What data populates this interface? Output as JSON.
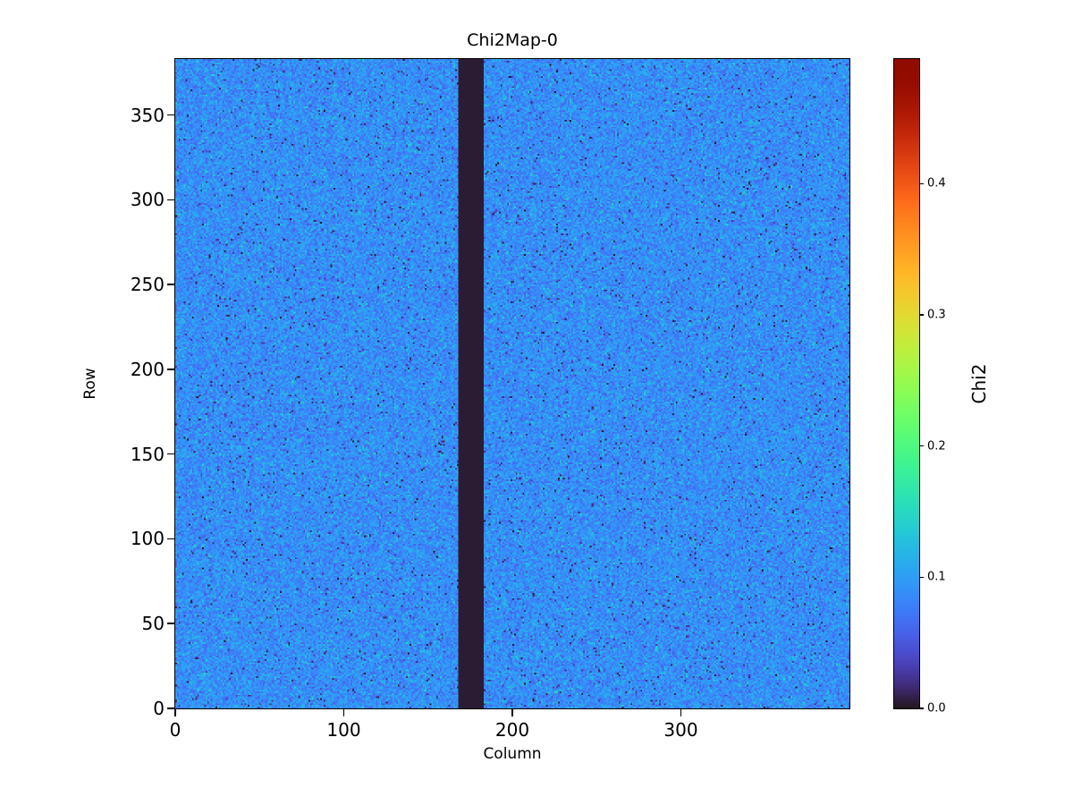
{
  "chart_data": {
    "type": "heatmap",
    "title": "Chi2Map-0",
    "xlabel": "Column",
    "ylabel": "Row",
    "colorbar_label": "Chi2",
    "colormap": "turbo",
    "x_range": [
      0,
      400
    ],
    "y_range": [
      0,
      383
    ],
    "value_range": [
      0.0,
      0.495
    ],
    "x_ticks": [
      0,
      100,
      200,
      300
    ],
    "y_ticks": [
      0,
      50,
      100,
      150,
      200,
      250,
      300,
      350
    ],
    "colorbar_ticks": [
      "0.0",
      "0.1",
      "0.2",
      "0.3",
      "0.4"
    ],
    "background_value_mean": 0.088,
    "background_value_spread": 0.022,
    "dead_column_band": {
      "start": 168,
      "end": 182,
      "value": 0.0
    },
    "pattern": "uniform random noise around 0.09 (blue) with sparse near-zero dark speckles and slightly brighter speckles; one near-zero dark vertical band at columns 168-182"
  }
}
